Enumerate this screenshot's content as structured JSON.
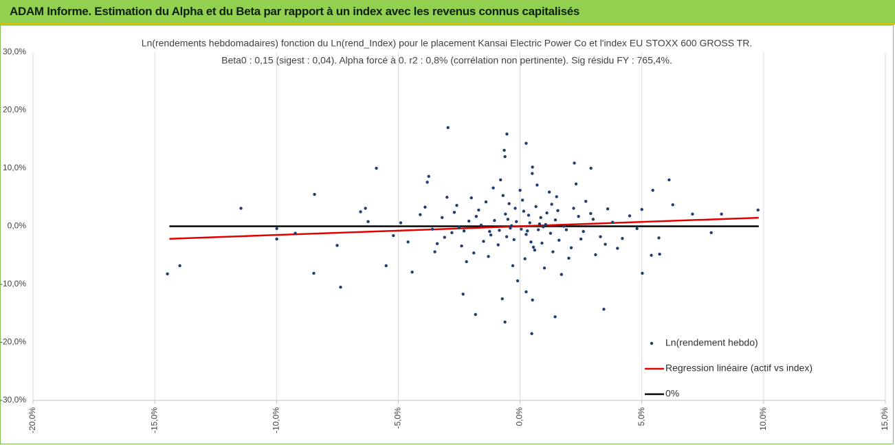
{
  "header": {
    "title": "ADAM Informe. Estimation du Alpha et du Beta par rapport à un index avec les revenus connus capitalisés"
  },
  "chart_data": {
    "type": "scatter",
    "title": "Ln(rendements hebdomadaires) fonction du Ln(rend_Index) pour le placement Kansai Electric Power Co  et l'index EU STOXX 600 GROSS TR.",
    "subtitle": "Beta0 : 0,15  (sigest : 0,04).  Alpha forcé à 0. r2 : 0,8% (corrélation non pertinente). Sig résidu FY : 765,4%.",
    "xlim": [
      -20,
      15
    ],
    "xticks": [
      {
        "value": -20,
        "label": "-20,0%"
      },
      {
        "value": -15,
        "label": "-15,0%"
      },
      {
        "value": -10,
        "label": "-10,0%"
      },
      {
        "value": -5,
        "label": "-5,0%"
      },
      {
        "value": 0,
        "label": "0,0%"
      },
      {
        "value": 5,
        "label": "5,0%"
      },
      {
        "value": 10,
        "label": "10,0%"
      },
      {
        "value": 15,
        "label": "15,0%"
      }
    ],
    "ylim": [
      -30,
      30
    ],
    "yticks": [
      {
        "value": -30,
        "label": "-30,0%"
      },
      {
        "value": -20,
        "label": "-20,0%"
      },
      {
        "value": -10,
        "label": "-10,0%"
      },
      {
        "value": 0,
        "label": "0,0%"
      },
      {
        "value": 10,
        "label": "10,0%"
      },
      {
        "value": 20,
        "label": "20,0%"
      },
      {
        "value": 30,
        "label": "30,0%"
      }
    ],
    "grid": "x",
    "legend": "bottom-right",
    "series": [
      {
        "name": "Ln(rendement hebdo)",
        "type": "scatter",
        "color": "#1f3e70",
        "x": [
          -14.48,
          -13.97,
          -11.46,
          -9.99,
          -9.99,
          -8.44,
          -8.47,
          -7.37,
          -5.9,
          -2.96,
          -0.54,
          0.25,
          -0.65,
          -0.62,
          2.23,
          2.91,
          0.51,
          6.12,
          7.08,
          8.27,
          9.77,
          7.85,
          5.02,
          3.44,
          0.48,
          -0.62,
          -1.83,
          1.44,
          -2.34,
          -0.73,
          0.51,
          0.25,
          -7.51,
          -5.5,
          -4.43,
          -3.75,
          -3.81,
          5.39,
          5.7,
          5.73,
          5.45,
          6.27,
          -6.55,
          -6.35,
          -9.23,
          -6.24,
          -0.5,
          0.3,
          1.1,
          -1.2,
          0.8,
          -0.2,
          1.6,
          -2.1,
          2.4,
          -0.9,
          0.1,
          0.6,
          -1.7,
          1.9,
          -2.8,
          2.9,
          -0.4,
          0.4,
          1.3,
          -1.4,
          0.9,
          -0.7,
          0.2,
          2.1,
          -2.4,
          3.3,
          -3.2,
          1.5,
          -1.9,
          0.0,
          0.7,
          -0.3,
          2.7,
          -2.6,
          3.8,
          -3.6,
          4.2,
          -4.1,
          1.0,
          -1.1,
          0.5,
          -0.1,
          2.3,
          -2.2,
          3.1,
          -3.0,
          4.5,
          -4.6,
          1.8,
          -1.6,
          0.35,
          -0.55,
          1.25,
          -1.05,
          0.15,
          0.95,
          -0.25,
          0.65,
          -0.85,
          1.45,
          2.6,
          -2.5,
          3.6,
          -3.4,
          4.8,
          -4.9,
          2.0,
          -2.0,
          1.2,
          -1.3,
          0.45,
          -0.6,
          0.85,
          -1.5,
          2.2,
          -2.7,
          3.5,
          -3.5,
          5.0,
          -5.2,
          1.7,
          -0.8,
          0.55,
          -0.15,
          0.25,
          1.05,
          -0.45,
          1.35,
          -1.8,
          2.5,
          -2.3,
          3.0,
          -3.1,
          4.0,
          -3.9,
          0.05,
          0.75,
          -0.35,
          1.55,
          -1.25
        ],
        "values": [
          -8.2,
          -6.8,
          3.1,
          -0.4,
          -2.2,
          5.5,
          -8.1,
          -10.5,
          10.0,
          17.0,
          15.9,
          14.3,
          13.1,
          12.0,
          10.9,
          10.0,
          10.2,
          8.0,
          2.1,
          2.1,
          2.8,
          -1.1,
          -8.1,
          -14.3,
          -18.5,
          -16.5,
          -15.2,
          -15.6,
          -11.7,
          -12.5,
          -12.7,
          -11.3,
          -3.3,
          -6.8,
          -7.9,
          8.6,
          7.6,
          -5.0,
          -2.0,
          -4.8,
          6.2,
          3.7,
          2.5,
          3.1,
          -1.2,
          0.8,
          1.2,
          -0.8,
          2.3,
          -1.5,
          0.4,
          3.1,
          -2.4,
          0.9,
          1.7,
          -3.2,
          4.5,
          -4.1,
          2.8,
          -0.6,
          -1.1,
          2.2,
          -0.3,
          0.6,
          3.8,
          4.2,
          -2.9,
          5.3,
          -5.6,
          -3.7,
          -3.4,
          -1.8,
          1.5,
          5.1,
          -4.6,
          6.2,
          7.1,
          -6.8,
          4.3,
          3.6,
          0.7,
          -0.5,
          -2.1,
          2.0,
          -7.2,
          6.6,
          9.1,
          -9.4,
          7.3,
          -6.1,
          -4.9,
          5.0,
          1.8,
          -2.7,
          0.0,
          0.2,
          1.9,
          -1.8,
          -1.2,
          1.0,
          2.6,
          -0.1,
          -2.3,
          3.4,
          -0.7,
          1.1,
          -0.9,
          -0.2,
          3.0,
          -3.0,
          -0.4,
          0.6,
          -5.5,
          4.9,
          5.9,
          -5.2,
          -2.7,
          2.1,
          1.5,
          -2.6,
          3.1,
          2.4,
          -3.1,
          -4.4,
          2.9,
          -1.6,
          -8.3,
          8.0,
          -3.6,
          0.8,
          -1.4,
          0.3,
          3.9,
          -4.4,
          1.7,
          -2.2,
          -0.8,
          1.2,
          -1.9,
          -3.8,
          3.3,
          -0.5,
          -0.6,
          0.1,
          2.7,
          -0.9
        ]
      },
      {
        "name": "Regression linéaire (actif vs index)",
        "type": "line",
        "color": "#e00000",
        "x": [
          -14.4,
          9.8
        ],
        "values": [
          -2.16,
          1.47
        ]
      },
      {
        "name": "0%",
        "type": "line",
        "color": "#000000",
        "x": [
          -14.4,
          9.8
        ],
        "values": [
          0,
          0
        ]
      }
    ]
  }
}
